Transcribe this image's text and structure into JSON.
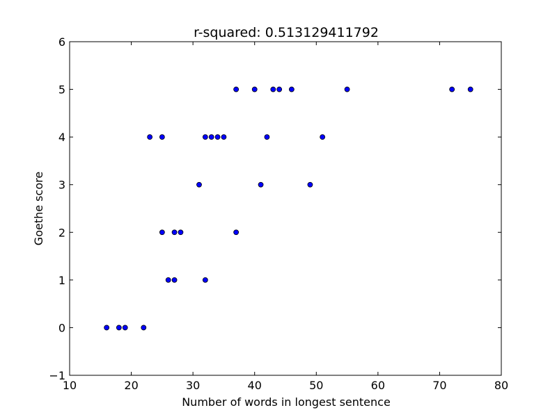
{
  "chart_data": {
    "type": "scatter",
    "title": "r-squared: 0.513129411792",
    "xlabel": "Number of words in longest sentence",
    "ylabel": "Goethe score",
    "xlim": [
      10,
      80
    ],
    "ylim": [
      -1,
      6
    ],
    "xticks": [
      10,
      20,
      30,
      40,
      50,
      60,
      70,
      80
    ],
    "yticks": [
      -1,
      0,
      1,
      2,
      3,
      4,
      5,
      6
    ],
    "grid": false,
    "marker_color": "#0000ff",
    "marker_edge_color": "#000000",
    "points": [
      {
        "x": 16,
        "y": 0
      },
      {
        "x": 18,
        "y": 0
      },
      {
        "x": 19,
        "y": 0
      },
      {
        "x": 22,
        "y": 0
      },
      {
        "x": 26,
        "y": 1
      },
      {
        "x": 27,
        "y": 1
      },
      {
        "x": 32,
        "y": 1
      },
      {
        "x": 25,
        "y": 2
      },
      {
        "x": 27,
        "y": 2
      },
      {
        "x": 28,
        "y": 2
      },
      {
        "x": 37,
        "y": 2
      },
      {
        "x": 31,
        "y": 3
      },
      {
        "x": 41,
        "y": 3
      },
      {
        "x": 49,
        "y": 3
      },
      {
        "x": 23,
        "y": 4
      },
      {
        "x": 25,
        "y": 4
      },
      {
        "x": 32,
        "y": 4
      },
      {
        "x": 33,
        "y": 4
      },
      {
        "x": 34,
        "y": 4
      },
      {
        "x": 35,
        "y": 4
      },
      {
        "x": 42,
        "y": 4
      },
      {
        "x": 51,
        "y": 4
      },
      {
        "x": 37,
        "y": 5
      },
      {
        "x": 40,
        "y": 5
      },
      {
        "x": 43,
        "y": 5
      },
      {
        "x": 44,
        "y": 5
      },
      {
        "x": 46,
        "y": 5
      },
      {
        "x": 55,
        "y": 5
      },
      {
        "x": 72,
        "y": 5
      },
      {
        "x": 75,
        "y": 5
      }
    ]
  }
}
